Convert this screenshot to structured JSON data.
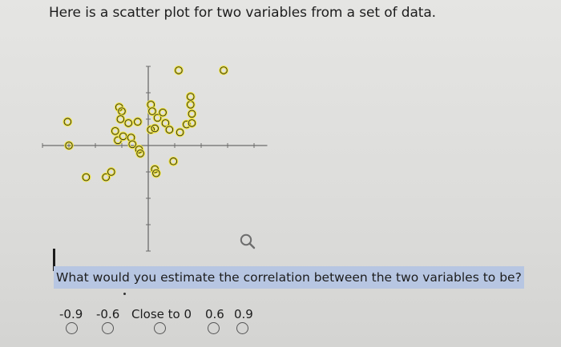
{
  "prompt": "Here is a scatter plot for two variables from a set of data.",
  "question": "What would you estimate the correlation between the two variables to be?",
  "options": [
    {
      "label": "-0.9"
    },
    {
      "label": "-0.6"
    },
    {
      "label": "Close to 0"
    },
    {
      "label": "0.6"
    },
    {
      "label": "0.9"
    }
  ],
  "colors": {
    "marker_fill": "#f0e43a",
    "marker_stroke": "#262626",
    "question_highlight": "#b7c6e2"
  },
  "icons": {
    "zoom": "magnifier-icon"
  },
  "chart_data": {
    "type": "scatter",
    "title": "",
    "xlabel": "",
    "ylabel": "",
    "xlim": [
      -4,
      4.5
    ],
    "ylim": [
      -4,
      3
    ],
    "grid": false,
    "points": [
      [
        -3.05,
        0.9
      ],
      [
        -3.0,
        0.0
      ],
      [
        -2.35,
        -1.2
      ],
      [
        -1.6,
        -1.2
      ],
      [
        -1.4,
        -1.0
      ],
      [
        -1.1,
        1.45
      ],
      [
        -1.0,
        1.3
      ],
      [
        -1.05,
        1.0
      ],
      [
        -1.25,
        0.55
      ],
      [
        -1.15,
        0.2
      ],
      [
        -0.95,
        0.35
      ],
      [
        -0.75,
        0.85
      ],
      [
        -0.65,
        0.3
      ],
      [
        -0.6,
        0.05
      ],
      [
        -0.4,
        0.9
      ],
      [
        -0.35,
        -0.15
      ],
      [
        -0.3,
        -0.3
      ],
      [
        0.1,
        1.55
      ],
      [
        0.15,
        1.3
      ],
      [
        0.1,
        0.6
      ],
      [
        0.35,
        1.05
      ],
      [
        0.55,
        1.25
      ],
      [
        0.25,
        -0.9
      ],
      [
        0.3,
        -1.05
      ],
      [
        0.25,
        0.65
      ],
      [
        0.65,
        0.85
      ],
      [
        0.8,
        0.6
      ],
      [
        0.95,
        -0.6
      ],
      [
        1.2,
        0.5
      ],
      [
        1.45,
        0.8
      ],
      [
        1.6,
        1.55
      ],
      [
        1.6,
        1.85
      ],
      [
        1.65,
        1.2
      ],
      [
        1.65,
        0.85
      ],
      [
        1.15,
        2.85
      ],
      [
        2.85,
        2.85
      ]
    ]
  }
}
